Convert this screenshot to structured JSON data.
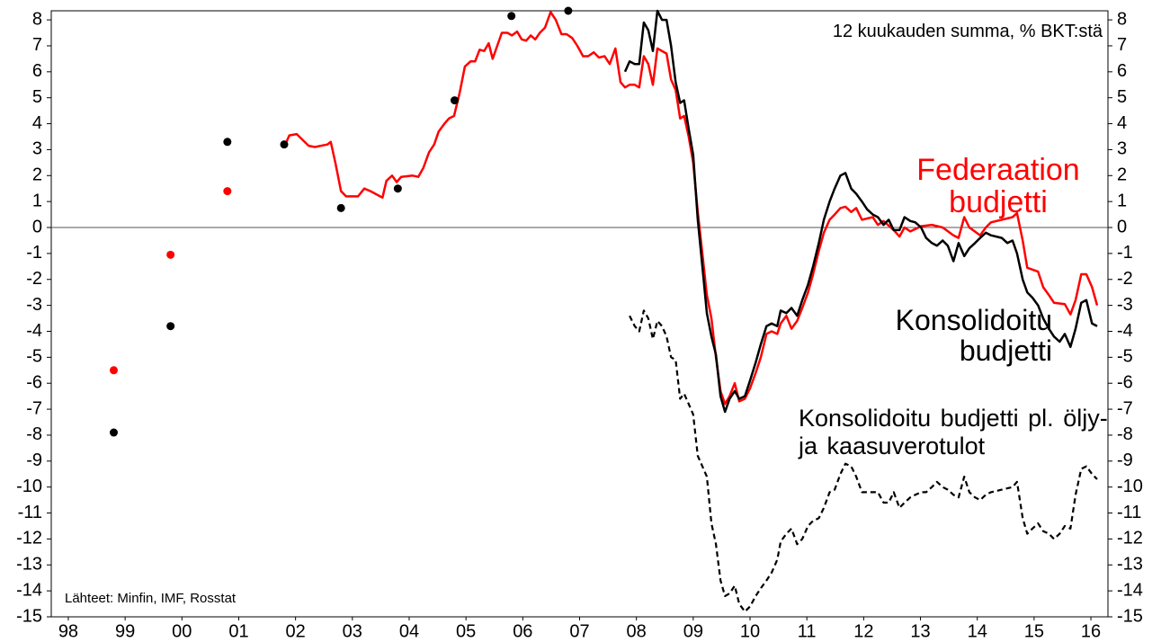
{
  "chart_data": {
    "type": "line",
    "title": "12 kuukauden summa, % BKT:stä",
    "note": "Lähteet: Minfin, IMF, Rosstat",
    "xlim": [
      1998.2,
      2016.8
    ],
    "xticks": [
      {
        "value": 1998.5,
        "label": "98"
      },
      {
        "value": 1999.5,
        "label": "99"
      },
      {
        "value": 2000.5,
        "label": "00"
      },
      {
        "value": 2001.5,
        "label": "01"
      },
      {
        "value": 2002.5,
        "label": "02"
      },
      {
        "value": 2003.5,
        "label": "03"
      },
      {
        "value": 2004.5,
        "label": "04"
      },
      {
        "value": 2005.5,
        "label": "05"
      },
      {
        "value": 2006.5,
        "label": "06"
      },
      {
        "value": 2007.5,
        "label": "07"
      },
      {
        "value": 2008.5,
        "label": "08"
      },
      {
        "value": 2009.5,
        "label": "09"
      },
      {
        "value": 2010.5,
        "label": "10"
      },
      {
        "value": 2011.5,
        "label": "11"
      },
      {
        "value": 2012.5,
        "label": "12"
      },
      {
        "value": 2013.5,
        "label": "13"
      },
      {
        "value": 2014.5,
        "label": "14"
      },
      {
        "value": 2015.5,
        "label": "15"
      },
      {
        "value": 2016.5,
        "label": "16"
      }
    ],
    "ylim": [
      -15,
      8.35
    ],
    "yticks": [
      -15,
      -14,
      -13,
      -12,
      -11,
      -10,
      -9,
      -8,
      -7,
      -6,
      -5,
      -4,
      -3,
      -2,
      -1,
      0,
      1,
      2,
      3,
      4,
      5,
      6,
      7,
      8
    ],
    "zero_line": true,
    "series": [
      {
        "name": "Federaation budjetti",
        "color": "#ff0000",
        "style": "solid",
        "x": [
          2002.3,
          2002.39,
          2002.52,
          2002.73,
          2002.84,
          2003.06,
          2003.12,
          2003.2,
          2003.3,
          2003.39,
          2003.6,
          2003.71,
          2003.82,
          2004.03,
          2004.1,
          2004.2,
          2004.28,
          2004.36,
          2004.56,
          2004.66,
          2004.75,
          2004.85,
          2004.94,
          2005.02,
          2005.12,
          2005.2,
          2005.29,
          2005.39,
          2005.48,
          2005.58,
          2005.66,
          2005.74,
          2005.82,
          2005.9,
          2005.97,
          2006.05,
          2006.13,
          2006.23,
          2006.31,
          2006.4,
          2006.48,
          2006.56,
          2006.64,
          2006.72,
          2006.8,
          2006.89,
          2006.99,
          2007.08,
          2007.18,
          2007.27,
          2007.37,
          2007.46,
          2007.56,
          2007.65,
          2007.75,
          2007.84,
          2007.94,
          2008.03,
          2008.13,
          2008.22,
          2008.3,
          2008.38,
          2008.47,
          2008.55,
          2008.63,
          2008.71,
          2008.79,
          2008.87,
          2009.03,
          2009.11,
          2009.19,
          2009.27,
          2009.34,
          2009.42,
          2009.5,
          2009.58,
          2009.66,
          2009.74,
          2009.82,
          2009.9,
          2009.98,
          2010.06,
          2010.14,
          2010.23,
          2010.31,
          2010.41,
          2010.5,
          2010.6,
          2010.69,
          2010.79,
          2010.88,
          2010.98,
          2011.04,
          2011.14,
          2011.23,
          2011.33,
          2011.42,
          2011.52,
          2011.61,
          2011.71,
          2011.8,
          2011.9,
          2011.99,
          2012.09,
          2012.18,
          2012.28,
          2012.37,
          2012.47,
          2012.66,
          2012.75,
          2012.85,
          2013.03,
          2013.13,
          2013.22,
          2013.32,
          2013.51,
          2013.7,
          2013.89,
          2014.08,
          2014.17,
          2014.27,
          2014.36,
          2014.55,
          2014.65,
          2014.74,
          2014.93,
          2015.12,
          2015.2,
          2015.3,
          2015.38,
          2015.57,
          2015.66,
          2015.76,
          2015.85,
          2016.04,
          2016.14,
          2016.23,
          2016.33,
          2016.42,
          2016.52,
          2016.61
        ],
        "values": [
          3.1,
          3.55,
          3.6,
          3.15,
          3.1,
          3.2,
          3.3,
          2.5,
          1.4,
          1.2,
          1.2,
          1.5,
          1.4,
          1.15,
          1.8,
          2.0,
          1.75,
          1.95,
          2.0,
          1.95,
          2.3,
          2.9,
          3.2,
          3.7,
          4.0,
          4.2,
          4.3,
          5.2,
          6.2,
          6.4,
          6.4,
          6.85,
          6.8,
          7.1,
          6.5,
          7.0,
          7.5,
          7.5,
          7.4,
          7.55,
          7.25,
          7.2,
          7.4,
          7.25,
          7.5,
          7.7,
          8.3,
          8.0,
          7.45,
          7.45,
          7.3,
          7.0,
          6.6,
          6.6,
          6.75,
          6.55,
          6.6,
          6.3,
          6.9,
          5.6,
          5.4,
          5.5,
          5.5,
          5.4,
          6.6,
          6.3,
          5.5,
          6.9,
          6.7,
          5.7,
          5.3,
          4.2,
          4.3,
          3.5,
          2.5,
          0.6,
          -1.0,
          -2.6,
          -3.5,
          -5.0,
          -6.3,
          -6.8,
          -6.5,
          -6.0,
          -6.7,
          -6.6,
          -6.2,
          -5.6,
          -5.0,
          -4.1,
          -4.0,
          -4.1,
          -3.7,
          -3.4,
          -3.9,
          -3.6,
          -3.1,
          -2.5,
          -1.8,
          -0.9,
          -0.2,
          0.3,
          0.5,
          0.75,
          0.8,
          0.6,
          0.75,
          0.3,
          0.4,
          0.1,
          0.25,
          -0.1,
          -0.35,
          0.0,
          -0.15,
          0.05,
          0.1,
          0.0,
          -0.3,
          -0.4,
          0.4,
          0.0,
          -0.3,
          0.0,
          0.2,
          0.3,
          0.4,
          0.55,
          -0.5,
          -1.55,
          -1.7,
          -2.3,
          -2.6,
          -2.9,
          -2.95,
          -3.35,
          -2.8,
          -1.8,
          -1.8,
          -2.3,
          -3.0
        ]
      },
      {
        "name": "Konsolidoitu budjetti",
        "color": "#000000",
        "style": "solid",
        "x": [
          2008.3,
          2008.38,
          2008.47,
          2008.55,
          2008.63,
          2008.71,
          2008.79,
          2008.87,
          2008.95,
          2009.03,
          2009.11,
          2009.19,
          2009.27,
          2009.34,
          2009.42,
          2009.5,
          2009.58,
          2009.66,
          2009.74,
          2009.82,
          2009.9,
          2009.98,
          2010.06,
          2010.14,
          2010.23,
          2010.31,
          2010.41,
          2010.5,
          2010.6,
          2010.69,
          2010.79,
          2010.88,
          2010.98,
          2011.04,
          2011.14,
          2011.23,
          2011.33,
          2011.42,
          2011.52,
          2011.61,
          2011.71,
          2011.8,
          2011.9,
          2011.99,
          2012.09,
          2012.18,
          2012.28,
          2012.37,
          2012.47,
          2012.56,
          2012.66,
          2012.75,
          2012.85,
          2012.94,
          2013.03,
          2013.13,
          2013.22,
          2013.32,
          2013.41,
          2013.51,
          2013.6,
          2013.7,
          2013.79,
          2013.89,
          2013.98,
          2014.08,
          2014.17,
          2014.27,
          2014.36,
          2014.46,
          2014.55,
          2014.65,
          2014.74,
          2014.93,
          2015.03,
          2015.12,
          2015.2,
          2015.3,
          2015.38,
          2015.47,
          2015.57,
          2015.66,
          2015.76,
          2015.85,
          2015.95,
          2016.04,
          2016.14,
          2016.23,
          2016.33,
          2016.42,
          2016.52,
          2016.61
        ],
        "values": [
          6.0,
          6.4,
          6.3,
          6.3,
          7.9,
          7.6,
          6.8,
          8.35,
          8.0,
          8.0,
          7.0,
          5.6,
          4.8,
          4.9,
          3.8,
          2.8,
          0.3,
          -1.5,
          -3.3,
          -4.2,
          -4.9,
          -6.5,
          -7.1,
          -6.6,
          -6.3,
          -6.6,
          -6.5,
          -5.9,
          -5.2,
          -4.5,
          -3.8,
          -3.7,
          -3.8,
          -3.2,
          -3.3,
          -3.1,
          -3.4,
          -2.8,
          -2.2,
          -1.5,
          -0.6,
          0.3,
          1.0,
          1.5,
          2.0,
          2.1,
          1.5,
          1.3,
          1.0,
          0.7,
          0.5,
          0.4,
          0.1,
          0.3,
          -0.1,
          -0.1,
          0.4,
          0.25,
          0.2,
          0.0,
          -0.4,
          -0.6,
          -0.7,
          -0.5,
          -0.7,
          -1.3,
          -0.6,
          -1.1,
          -0.8,
          -0.6,
          -0.4,
          -0.2,
          -0.3,
          -0.4,
          -0.6,
          -0.5,
          -1.0,
          -2.0,
          -2.5,
          -2.7,
          -3.0,
          -3.5,
          -3.9,
          -4.2,
          -4.4,
          -4.1,
          -4.6,
          -3.9,
          -2.9,
          -2.8,
          -3.7,
          -3.8
        ]
      },
      {
        "name": "Konsolidoitu budjetti pl. öljy- ja kaasuverotulot",
        "color": "#000000",
        "style": "dashed",
        "x": [
          2008.38,
          2008.47,
          2008.55,
          2008.63,
          2008.71,
          2008.79,
          2008.87,
          2008.95,
          2009.03,
          2009.11,
          2009.19,
          2009.27,
          2009.34,
          2009.42,
          2009.5,
          2009.58,
          2009.66,
          2009.74,
          2009.82,
          2009.9,
          2009.98,
          2010.06,
          2010.14,
          2010.23,
          2010.31,
          2010.41,
          2010.5,
          2010.6,
          2010.69,
          2010.79,
          2010.88,
          2010.98,
          2011.04,
          2011.14,
          2011.23,
          2011.33,
          2011.42,
          2011.52,
          2011.61,
          2011.71,
          2011.8,
          2011.9,
          2011.99,
          2012.09,
          2012.18,
          2012.28,
          2012.37,
          2012.47,
          2012.56,
          2012.66,
          2012.75,
          2012.85,
          2012.94,
          2013.03,
          2013.13,
          2013.22,
          2013.32,
          2013.41,
          2013.51,
          2013.6,
          2013.7,
          2013.79,
          2013.89,
          2013.98,
          2014.08,
          2014.17,
          2014.27,
          2014.36,
          2014.46,
          2014.55,
          2014.65,
          2014.74,
          2014.93,
          2015.12,
          2015.2,
          2015.3,
          2015.38,
          2015.47,
          2015.57,
          2015.66,
          2015.76,
          2015.85,
          2015.95,
          2016.04,
          2016.14,
          2016.23,
          2016.33,
          2016.42,
          2016.52,
          2016.61
        ],
        "values": [
          -3.4,
          -3.8,
          -4.0,
          -3.2,
          -3.5,
          -4.3,
          -3.6,
          -3.8,
          -4.2,
          -5.0,
          -5.1,
          -6.6,
          -6.4,
          -6.8,
          -7.2,
          -8.8,
          -9.2,
          -9.6,
          -11.4,
          -12.2,
          -13.6,
          -14.2,
          -14.1,
          -13.8,
          -14.5,
          -14.8,
          -14.6,
          -14.2,
          -13.9,
          -13.6,
          -13.3,
          -12.8,
          -12.1,
          -11.8,
          -11.6,
          -12.2,
          -12.0,
          -11.5,
          -11.3,
          -11.2,
          -10.8,
          -10.2,
          -10.1,
          -9.5,
          -9.1,
          -9.2,
          -9.6,
          -10.2,
          -10.2,
          -10.2,
          -10.2,
          -10.6,
          -10.6,
          -10.2,
          -10.8,
          -10.6,
          -10.4,
          -10.3,
          -10.2,
          -10.2,
          -10.0,
          -9.8,
          -10.0,
          -10.1,
          -10.3,
          -10.4,
          -9.6,
          -10.2,
          -10.4,
          -10.5,
          -10.3,
          -10.2,
          -10.1,
          -10.0,
          -9.8,
          -11.2,
          -11.8,
          -11.6,
          -11.4,
          -11.7,
          -11.8,
          -12.0,
          -11.8,
          -11.5,
          -11.6,
          -10.3,
          -9.3,
          -9.2,
          -9.5,
          -9.7
        ]
      },
      {
        "color": "#000000",
        "style": "dots",
        "x": [
          1999.3,
          2000.3,
          2001.3,
          2002.3,
          2003.3,
          2004.3,
          2005.3,
          2006.3,
          2007.3
        ],
        "values": [
          -7.9,
          -3.8,
          3.3,
          3.2,
          0.75,
          1.5,
          4.9,
          8.15,
          8.35
        ]
      },
      {
        "color": "#ff0000",
        "style": "dots",
        "x": [
          1999.3,
          2000.3,
          2001.3
        ],
        "values": [
          -5.5,
          -1.05,
          1.4
        ]
      }
    ]
  }
}
